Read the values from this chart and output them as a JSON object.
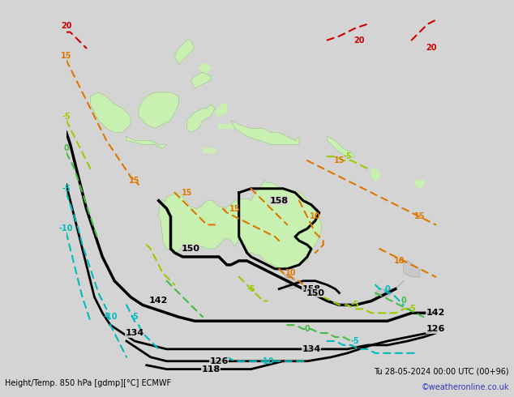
{
  "title_left": "Height/Temp. 850 hPa [gdmp][°C] ECMWF",
  "title_right": "Tu 28-05-2024 00:00 UTC (00+96)",
  "copyright": "©weatheronline.co.uk",
  "bg_color": "#d4d4d4",
  "land_color": "#c8c8c8",
  "australia_color": "#c8f0b0",
  "ocean_color": "#d4d4d4",
  "text_color_bottom": "#000000",
  "copyright_color": "#3333bb",
  "geo_color": "#000000",
  "temp_orange_color": "#dd7700",
  "temp_cyan_color": "#00bbbb",
  "temp_green_color": "#44bb44",
  "temp_lgreen_color": "#99cc00",
  "temp_red_color": "#cc0000",
  "figsize": [
    6.34,
    4.9
  ],
  "dpi": 100,
  "lon_min": 90,
  "lon_max": 185,
  "lat_min": -65,
  "lat_max": 28
}
